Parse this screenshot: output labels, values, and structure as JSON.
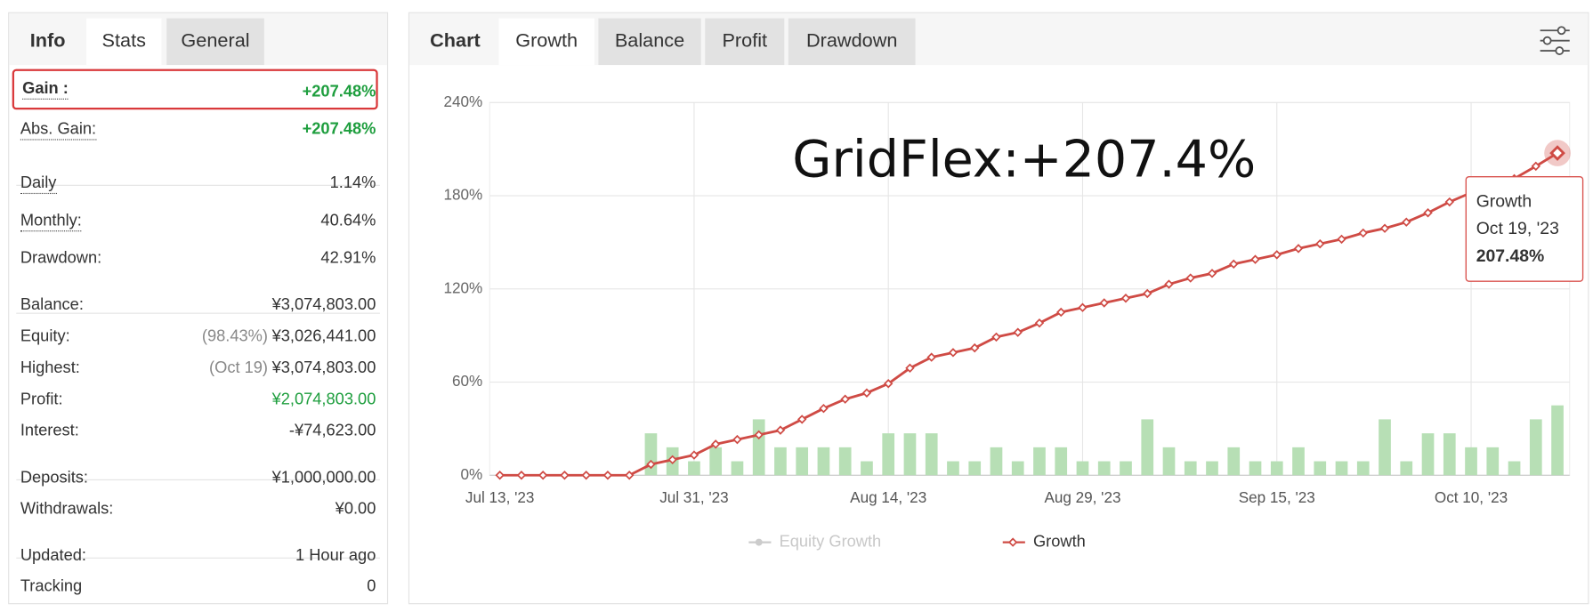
{
  "info_panel": {
    "tabs": [
      "Info",
      "Stats",
      "General"
    ],
    "groups": [
      [
        {
          "label": "Gain :",
          "value": "+207.48%",
          "color": "#1e9e3e",
          "highlighted": true
        },
        {
          "label": "Abs. Gain:",
          "value": "+207.48%",
          "color": "#1e9e3e"
        }
      ],
      [
        {
          "label": "Daily",
          "value": "1.14%"
        },
        {
          "label": "Monthly:",
          "value": "40.64%"
        },
        {
          "label": "Drawdown:",
          "value": "42.91%"
        }
      ],
      [
        {
          "label": "Balance:",
          "value": "¥3,074,803.00"
        },
        {
          "label": "Equity:",
          "note": "(98.43%)",
          "value": "¥3,026,441.00"
        },
        {
          "label": "Highest:",
          "note": "(Oct 19)",
          "value": "¥3,074,803.00"
        },
        {
          "label": "Profit:",
          "value": "¥2,074,803.00",
          "color": "#1e9e3e"
        },
        {
          "label": "Interest:",
          "value": "-¥74,623.00"
        }
      ],
      [
        {
          "label": "Deposits:",
          "value": "¥1,000,000.00"
        },
        {
          "label": "Withdrawals:",
          "value": "¥0.00"
        }
      ],
      [
        {
          "label": "Updated:",
          "value": "1 Hour ago"
        },
        {
          "label": "Tracking",
          "value": "0"
        }
      ]
    ]
  },
  "chart_tabs": [
    "Chart",
    "Growth",
    "Balance",
    "Profit",
    "Drawdown"
  ],
  "chart_data": {
    "type": "line",
    "annotation": "GridFlex:+207.4%",
    "categories": [
      "Jul 13, '23",
      null,
      null,
      null,
      null,
      null,
      null,
      null,
      null,
      "Jul 31, '23",
      null,
      null,
      null,
      null,
      null,
      null,
      null,
      null,
      "Aug 14, '23",
      null,
      null,
      null,
      null,
      null,
      null,
      null,
      null,
      "Aug 29, '23",
      null,
      null,
      null,
      null,
      null,
      null,
      null,
      null,
      "Sep 15, '23",
      null,
      null,
      null,
      null,
      null,
      null,
      null,
      null,
      "Oct 10, '23",
      null,
      null,
      null,
      null
    ],
    "series": [
      {
        "name": "Equity Growth",
        "color": "#cccccc",
        "visible": false,
        "values": [
          null,
          null,
          null,
          null,
          null,
          null,
          null,
          null,
          null,
          null,
          null,
          null,
          null,
          null,
          null,
          null,
          null,
          null,
          null,
          null,
          null,
          null,
          null,
          null,
          null,
          null,
          null,
          null,
          null,
          null,
          null,
          null,
          null,
          null,
          null,
          null,
          null,
          null,
          null,
          null,
          null,
          null,
          null,
          null,
          null,
          null,
          null,
          null,
          null,
          null
        ]
      },
      {
        "name": "Growth",
        "color": "#cf4b45",
        "values": [
          0,
          0,
          0,
          0,
          0,
          0,
          0,
          7,
          10,
          13,
          20,
          23,
          26,
          29,
          36,
          43,
          49,
          53,
          59,
          69,
          76,
          79,
          82,
          89,
          92,
          98,
          105,
          108,
          111,
          114,
          117,
          123,
          127,
          130,
          136,
          139,
          142,
          146,
          149,
          152,
          156,
          159,
          163,
          169,
          176,
          182,
          188,
          191,
          199,
          207.48
        ]
      },
      {
        "type": "bar",
        "color": "#b7dfb5",
        "values": [
          null,
          null,
          null,
          null,
          null,
          null,
          null,
          27,
          18,
          9,
          18,
          9,
          36,
          18,
          18,
          18,
          18,
          9,
          27,
          27,
          27,
          9,
          9,
          18,
          9,
          18,
          18,
          9,
          9,
          9,
          36,
          18,
          9,
          9,
          18,
          9,
          9,
          18,
          9,
          9,
          9,
          36,
          9,
          27,
          27,
          18,
          18,
          9,
          36,
          45
        ]
      }
    ],
    "ylim": [
      0,
      240
    ],
    "yticks": [
      {
        "value": 0,
        "label": "0%"
      },
      {
        "value": 60,
        "label": "60%"
      },
      {
        "value": 120,
        "label": "120%"
      },
      {
        "value": 180,
        "label": "180%"
      },
      {
        "value": 240,
        "label": "240%"
      }
    ],
    "grid": true,
    "tooltip": {
      "x": "Oct 19, '23",
      "value": 207.48,
      "value_label": "207.48%"
    }
  }
}
